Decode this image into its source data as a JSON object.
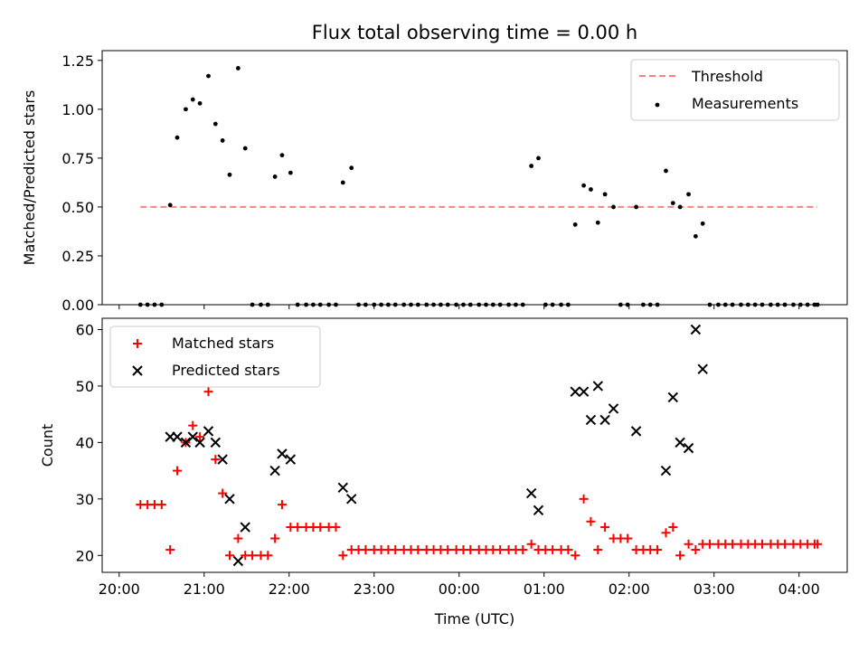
{
  "chart_data": [
    {
      "type": "scatter",
      "title": "Flux total observing time = 0.00 h",
      "xlabel": "",
      "ylabel": "Matched/Predicted stars",
      "ylim": [
        0,
        1.3
      ],
      "yticks": [
        "0.00",
        "0.25",
        "0.50",
        "0.75",
        "1.00",
        "1.25"
      ],
      "threshold": {
        "name": "Threshold",
        "value": 0.5,
        "x_start": "20:15",
        "x_end": "04:13",
        "color": "#ff8080"
      },
      "legend": {
        "location": "upper right",
        "entries": [
          "Threshold",
          "Measurements"
        ]
      },
      "series": [
        {
          "name": "Measurements",
          "color": "#000000",
          "marker": "dot",
          "points": [
            [
              "20:15",
              0
            ],
            [
              "20:20",
              0
            ],
            [
              "20:25",
              0
            ],
            [
              "20:30",
              0
            ],
            [
              "20:36",
              0.51
            ],
            [
              "20:41",
              0.855
            ],
            [
              "20:47",
              1.0
            ],
            [
              "20:52",
              1.05
            ],
            [
              "20:57",
              1.03
            ],
            [
              "21:03",
              1.17
            ],
            [
              "21:08",
              0.925
            ],
            [
              "21:13",
              0.84
            ],
            [
              "21:18",
              0.665
            ],
            [
              "21:24",
              1.21
            ],
            [
              "21:29",
              0.8
            ],
            [
              "21:34",
              0
            ],
            [
              "21:40",
              0
            ],
            [
              "21:45",
              0
            ],
            [
              "21:50",
              0.655
            ],
            [
              "21:55",
              0.765
            ],
            [
              "22:01",
              0.675
            ],
            [
              "22:06",
              0
            ],
            [
              "22:12",
              0
            ],
            [
              "22:17",
              0
            ],
            [
              "22:22",
              0
            ],
            [
              "22:28",
              0
            ],
            [
              "22:33",
              0
            ],
            [
              "22:38",
              0.625
            ],
            [
              "22:44",
              0.7
            ],
            [
              "22:49",
              0
            ],
            [
              "22:54",
              0
            ],
            [
              "23:00",
              0
            ],
            [
              "23:05",
              0
            ],
            [
              "23:10",
              0
            ],
            [
              "23:15",
              0
            ],
            [
              "23:21",
              0
            ],
            [
              "23:26",
              0
            ],
            [
              "23:31",
              0
            ],
            [
              "23:37",
              0
            ],
            [
              "23:42",
              0
            ],
            [
              "23:47",
              0
            ],
            [
              "23:52",
              0
            ],
            [
              "23:58",
              0
            ],
            [
              "00:03",
              0
            ],
            [
              "00:08",
              0
            ],
            [
              "00:14",
              0
            ],
            [
              "00:19",
              0
            ],
            [
              "00:24",
              0
            ],
            [
              "00:29",
              0
            ],
            [
              "00:35",
              0
            ],
            [
              "00:40",
              0
            ],
            [
              "00:45",
              0
            ],
            [
              "00:51",
              0.71
            ],
            [
              "00:56",
              0.75
            ],
            [
              "01:01",
              0
            ],
            [
              "01:06",
              0
            ],
            [
              "01:12",
              0
            ],
            [
              "01:17",
              0
            ],
            [
              "01:22",
              0.41
            ],
            [
              "01:28",
              0.61
            ],
            [
              "01:33",
              0.59
            ],
            [
              "01:38",
              0.42
            ],
            [
              "01:43",
              0.565
            ],
            [
              "01:49",
              0.5
            ],
            [
              "01:54",
              0
            ],
            [
              "01:59",
              0
            ],
            [
              "02:05",
              0.5
            ],
            [
              "02:10",
              0
            ],
            [
              "02:15",
              0
            ],
            [
              "02:20",
              0
            ],
            [
              "02:26",
              0.685
            ],
            [
              "02:31",
              0.52
            ],
            [
              "02:36",
              0.5
            ],
            [
              "02:42",
              0.565
            ],
            [
              "02:47",
              0.35
            ],
            [
              "02:52",
              0.415
            ],
            [
              "02:57",
              0
            ],
            [
              "03:03",
              0
            ],
            [
              "03:08",
              0
            ],
            [
              "03:13",
              0
            ],
            [
              "03:19",
              0
            ],
            [
              "03:24",
              0
            ],
            [
              "03:29",
              0
            ],
            [
              "03:34",
              0
            ],
            [
              "03:40",
              0
            ],
            [
              "03:45",
              0
            ],
            [
              "03:50",
              0
            ],
            [
              "03:56",
              0
            ],
            [
              "04:01",
              0
            ],
            [
              "04:06",
              0
            ],
            [
              "04:11",
              0
            ],
            [
              "04:13",
              0
            ]
          ]
        }
      ]
    },
    {
      "type": "scatter",
      "title": "",
      "xlabel": "Time (UTC)",
      "ylabel": "Count",
      "ylim": [
        17,
        62
      ],
      "yticks": [
        "20",
        "30",
        "40",
        "50",
        "60"
      ],
      "xticks": [
        "20:00",
        "21:00",
        "22:00",
        "23:00",
        "00:00",
        "01:00",
        "02:00",
        "03:00",
        "04:00"
      ],
      "legend": {
        "location": "upper left",
        "entries": [
          "Matched stars",
          "Predicted stars"
        ]
      },
      "series": [
        {
          "name": "Matched stars",
          "color": "#ff0000",
          "marker": "plus",
          "points": [
            [
              "20:15",
              29
            ],
            [
              "20:20",
              29
            ],
            [
              "20:25",
              29
            ],
            [
              "20:30",
              29
            ],
            [
              "20:36",
              21
            ],
            [
              "20:41",
              35
            ],
            [
              "20:47",
              40
            ],
            [
              "20:52",
              43
            ],
            [
              "20:57",
              41
            ],
            [
              "21:03",
              49
            ],
            [
              "21:08",
              37
            ],
            [
              "21:13",
              31
            ],
            [
              "21:18",
              20
            ],
            [
              "21:24",
              23
            ],
            [
              "21:29",
              20
            ],
            [
              "21:34",
              20
            ],
            [
              "21:40",
              20
            ],
            [
              "21:45",
              20
            ],
            [
              "21:50",
              23
            ],
            [
              "21:55",
              29
            ],
            [
              "22:01",
              25
            ],
            [
              "22:06",
              25
            ],
            [
              "22:12",
              25
            ],
            [
              "22:17",
              25
            ],
            [
              "22:22",
              25
            ],
            [
              "22:28",
              25
            ],
            [
              "22:33",
              25
            ],
            [
              "22:38",
              20
            ],
            [
              "22:44",
              21
            ],
            [
              "22:49",
              21
            ],
            [
              "22:54",
              21
            ],
            [
              "23:00",
              21
            ],
            [
              "23:05",
              21
            ],
            [
              "23:10",
              21
            ],
            [
              "23:15",
              21
            ],
            [
              "23:21",
              21
            ],
            [
              "23:26",
              21
            ],
            [
              "23:31",
              21
            ],
            [
              "23:37",
              21
            ],
            [
              "23:42",
              21
            ],
            [
              "23:47",
              21
            ],
            [
              "23:52",
              21
            ],
            [
              "23:58",
              21
            ],
            [
              "00:03",
              21
            ],
            [
              "00:08",
              21
            ],
            [
              "00:14",
              21
            ],
            [
              "00:19",
              21
            ],
            [
              "00:24",
              21
            ],
            [
              "00:29",
              21
            ],
            [
              "00:35",
              21
            ],
            [
              "00:40",
              21
            ],
            [
              "00:45",
              21
            ],
            [
              "00:51",
              22
            ],
            [
              "00:56",
              21
            ],
            [
              "01:01",
              21
            ],
            [
              "01:06",
              21
            ],
            [
              "01:12",
              21
            ],
            [
              "01:17",
              21
            ],
            [
              "01:22",
              20
            ],
            [
              "01:28",
              30
            ],
            [
              "01:33",
              26
            ],
            [
              "01:38",
              21
            ],
            [
              "01:43",
              25
            ],
            [
              "01:49",
              23
            ],
            [
              "01:54",
              23
            ],
            [
              "01:59",
              23
            ],
            [
              "02:05",
              21
            ],
            [
              "02:10",
              21
            ],
            [
              "02:15",
              21
            ],
            [
              "02:20",
              21
            ],
            [
              "02:26",
              24
            ],
            [
              "02:31",
              25
            ],
            [
              "02:36",
              20
            ],
            [
              "02:42",
              22
            ],
            [
              "02:47",
              21
            ],
            [
              "02:52",
              22
            ],
            [
              "02:57",
              22
            ],
            [
              "03:03",
              22
            ],
            [
              "03:08",
              22
            ],
            [
              "03:13",
              22
            ],
            [
              "03:19",
              22
            ],
            [
              "03:24",
              22
            ],
            [
              "03:29",
              22
            ],
            [
              "03:34",
              22
            ],
            [
              "03:40",
              22
            ],
            [
              "03:45",
              22
            ],
            [
              "03:50",
              22
            ],
            [
              "03:56",
              22
            ],
            [
              "04:01",
              22
            ],
            [
              "04:06",
              22
            ],
            [
              "04:11",
              22
            ],
            [
              "04:13",
              22
            ]
          ]
        },
        {
          "name": "Predicted stars",
          "color": "#000000",
          "marker": "x",
          "points": [
            [
              "20:36",
              41
            ],
            [
              "20:41",
              41
            ],
            [
              "20:47",
              40
            ],
            [
              "20:52",
              41
            ],
            [
              "20:57",
              40
            ],
            [
              "21:03",
              42
            ],
            [
              "21:08",
              40
            ],
            [
              "21:13",
              37
            ],
            [
              "21:18",
              30
            ],
            [
              "21:24",
              19
            ],
            [
              "21:29",
              25
            ],
            [
              "21:50",
              35
            ],
            [
              "21:55",
              38
            ],
            [
              "22:01",
              37
            ],
            [
              "22:38",
              32
            ],
            [
              "22:44",
              30
            ],
            [
              "00:51",
              31
            ],
            [
              "00:56",
              28
            ],
            [
              "01:22",
              49
            ],
            [
              "01:28",
              49
            ],
            [
              "01:33",
              44
            ],
            [
              "01:38",
              50
            ],
            [
              "01:43",
              44
            ],
            [
              "01:49",
              46
            ],
            [
              "02:05",
              42
            ],
            [
              "02:26",
              35
            ],
            [
              "02:31",
              48
            ],
            [
              "02:36",
              40
            ],
            [
              "02:42",
              39
            ],
            [
              "02:47",
              60
            ],
            [
              "02:52",
              53
            ]
          ]
        }
      ]
    }
  ]
}
